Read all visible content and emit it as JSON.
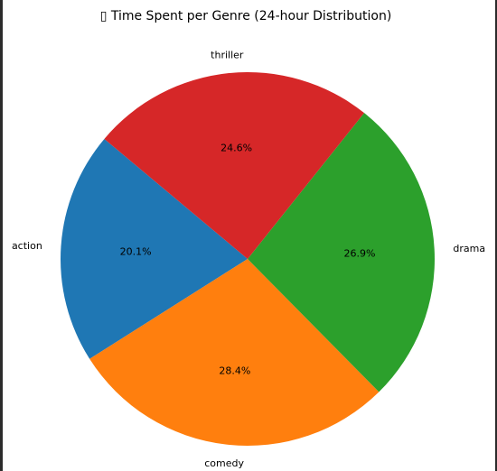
{
  "chart_data": {
    "type": "pie",
    "title": "▯ Time Spent per Genre (24-hour Distribution)",
    "categories": [
      "action",
      "comedy",
      "drama",
      "thriller"
    ],
    "values": [
      20.1,
      28.4,
      26.9,
      24.6
    ],
    "labels": [
      "20.1%",
      "28.4%",
      "26.9%",
      "24.6%"
    ],
    "colors": [
      "#1f77b4",
      "#ff7f0e",
      "#2ca02c",
      "#d62728"
    ],
    "start_angle_deg": 140,
    "direction": "counterclockwise",
    "legend": "none"
  }
}
